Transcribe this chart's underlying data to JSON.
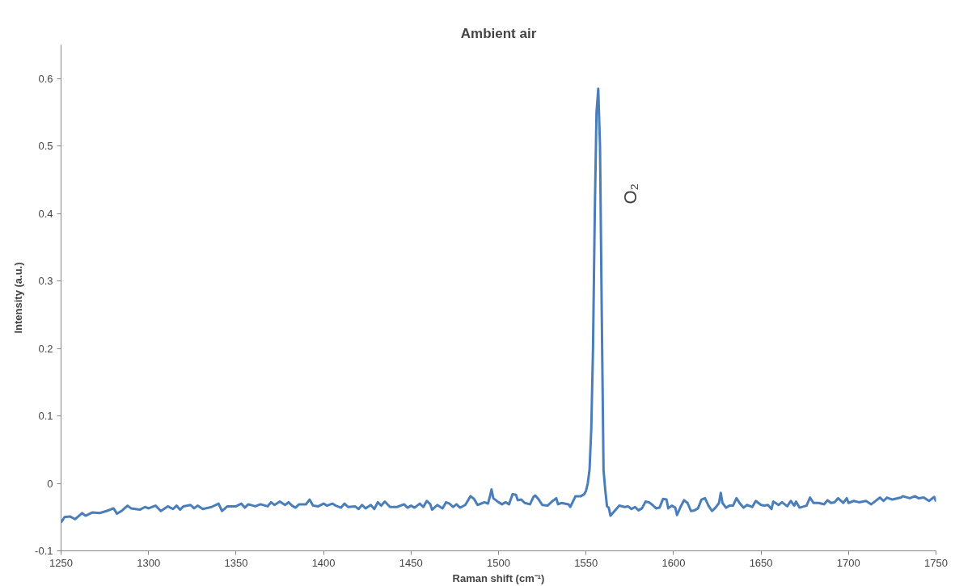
{
  "chart_data": {
    "type": "line",
    "title": "Ambient air",
    "xlabel": "Raman shift (cm⁻¹)",
    "ylabel": "Intensity (a.u.)",
    "xlim": [
      1250,
      1750
    ],
    "xticks": [
      1250,
      1300,
      1350,
      1400,
      1450,
      1500,
      1550,
      1600,
      1650,
      1700,
      1750
    ],
    "ylim": [
      -0.1,
      0.65
    ],
    "yticks": [
      -0.1,
      0,
      0.1,
      0.2,
      0.3,
      0.4,
      0.5,
      0.6
    ],
    "grid": false,
    "marker": "none",
    "line_style": "solid",
    "annotations": [
      "O₂"
    ],
    "series": [
      {
        "color": "#4a7ebb",
        "x": [
          1250,
          1252,
          1255,
          1258,
          1262,
          1264,
          1268,
          1272,
          1276,
          1280,
          1282,
          1285,
          1288,
          1290,
          1295,
          1298,
          1300,
          1304,
          1307,
          1311,
          1314,
          1316,
          1318,
          1320,
          1324,
          1326,
          1328,
          1331,
          1336,
          1340,
          1342,
          1345,
          1350,
          1353,
          1355,
          1357,
          1361,
          1364,
          1368,
          1370,
          1372,
          1375,
          1378,
          1380,
          1382,
          1384,
          1386,
          1390,
          1392,
          1394,
          1397,
          1400,
          1402,
          1405,
          1407,
          1410,
          1412,
          1414,
          1418,
          1420,
          1422,
          1424,
          1427,
          1429,
          1431,
          1433,
          1435,
          1438,
          1442,
          1446,
          1448,
          1450,
          1452,
          1455,
          1457,
          1459,
          1461,
          1462,
          1465,
          1468,
          1470,
          1472,
          1474,
          1476,
          1478,
          1481,
          1484,
          1486,
          1488,
          1492,
          1494,
          1495,
          1496,
          1497,
          1500,
          1502,
          1504,
          1506,
          1508,
          1510,
          1511,
          1513,
          1515,
          1518,
          1520,
          1521,
          1523,
          1525,
          1528,
          1531,
          1533,
          1534,
          1536,
          1540,
          1541,
          1544,
          1547,
          1549,
          1550,
          1551,
          1552,
          1553,
          1554,
          1555,
          1556,
          1557,
          1558,
          1559,
          1560,
          1561,
          1562,
          1563,
          1564,
          1567,
          1569,
          1572,
          1574,
          1576,
          1578,
          1580,
          1582,
          1584,
          1586,
          1588,
          1590,
          1592,
          1594,
          1596,
          1597,
          1599,
          1601,
          1602,
          1604,
          1606,
          1608,
          1610,
          1612,
          1614,
          1616,
          1618,
          1620,
          1622,
          1624,
          1626,
          1627,
          1628,
          1630,
          1632,
          1634,
          1636,
          1638,
          1640,
          1642,
          1644,
          1645,
          1647,
          1650,
          1652,
          1654,
          1656,
          1657,
          1660,
          1662,
          1665,
          1667,
          1669,
          1670,
          1672,
          1676,
          1678,
          1680,
          1683,
          1686,
          1688,
          1690,
          1692,
          1694,
          1697,
          1699,
          1700,
          1703,
          1706,
          1710,
          1713,
          1716,
          1718,
          1720,
          1722,
          1725,
          1730,
          1731,
          1735,
          1738,
          1740,
          1743,
          1746,
          1749,
          1750
        ],
        "values": [
          -0.058,
          -0.05,
          -0.049,
          -0.053,
          -0.044,
          -0.048,
          -0.043,
          -0.044,
          -0.041,
          -0.037,
          -0.045,
          -0.04,
          -0.033,
          -0.037,
          -0.039,
          -0.035,
          -0.037,
          -0.033,
          -0.041,
          -0.034,
          -0.038,
          -0.033,
          -0.039,
          -0.034,
          -0.032,
          -0.037,
          -0.033,
          -0.038,
          -0.035,
          -0.03,
          -0.041,
          -0.034,
          -0.034,
          -0.03,
          -0.036,
          -0.031,
          -0.034,
          -0.031,
          -0.034,
          -0.028,
          -0.032,
          -0.027,
          -0.032,
          -0.028,
          -0.033,
          -0.036,
          -0.031,
          -0.031,
          -0.024,
          -0.033,
          -0.034,
          -0.03,
          -0.033,
          -0.03,
          -0.033,
          -0.036,
          -0.03,
          -0.035,
          -0.034,
          -0.038,
          -0.032,
          -0.037,
          -0.032,
          -0.038,
          -0.028,
          -0.033,
          -0.027,
          -0.035,
          -0.035,
          -0.031,
          -0.036,
          -0.033,
          -0.036,
          -0.03,
          -0.035,
          -0.026,
          -0.031,
          -0.039,
          -0.032,
          -0.037,
          -0.028,
          -0.03,
          -0.035,
          -0.031,
          -0.036,
          -0.032,
          -0.019,
          -0.023,
          -0.032,
          -0.028,
          -0.03,
          -0.02,
          -0.009,
          -0.022,
          -0.028,
          -0.031,
          -0.028,
          -0.031,
          -0.016,
          -0.017,
          -0.025,
          -0.024,
          -0.029,
          -0.031,
          -0.02,
          -0.018,
          -0.024,
          -0.032,
          -0.033,
          -0.026,
          -0.022,
          -0.031,
          -0.029,
          -0.031,
          -0.035,
          -0.019,
          -0.019,
          -0.016,
          -0.011,
          0.0,
          0.02,
          0.08,
          0.2,
          0.4,
          0.55,
          0.585,
          0.5,
          0.25,
          0.02,
          -0.01,
          -0.034,
          -0.036,
          -0.048,
          -0.039,
          -0.033,
          -0.035,
          -0.034,
          -0.038,
          -0.035,
          -0.04,
          -0.037,
          -0.027,
          -0.028,
          -0.032,
          -0.037,
          -0.036,
          -0.023,
          -0.024,
          -0.037,
          -0.033,
          -0.036,
          -0.047,
          -0.035,
          -0.025,
          -0.029,
          -0.041,
          -0.04,
          -0.037,
          -0.024,
          -0.022,
          -0.033,
          -0.041,
          -0.036,
          -0.029,
          -0.014,
          -0.029,
          -0.036,
          -0.033,
          -0.033,
          -0.022,
          -0.03,
          -0.036,
          -0.032,
          -0.034,
          -0.035,
          -0.026,
          -0.032,
          -0.033,
          -0.032,
          -0.038,
          -0.027,
          -0.032,
          -0.028,
          -0.034,
          -0.026,
          -0.033,
          -0.027,
          -0.036,
          -0.033,
          -0.021,
          -0.029,
          -0.029,
          -0.031,
          -0.025,
          -0.029,
          -0.028,
          -0.022,
          -0.029,
          -0.022,
          -0.029,
          -0.026,
          -0.028,
          -0.026,
          -0.031,
          -0.025,
          -0.021,
          -0.026,
          -0.021,
          -0.024,
          -0.021,
          -0.019,
          -0.022,
          -0.019,
          -0.022,
          -0.021,
          -0.026,
          -0.02,
          -0.027
        ]
      }
    ]
  }
}
